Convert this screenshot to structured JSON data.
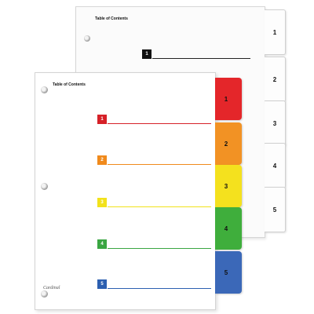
{
  "back_sheet": {
    "title": "Table of Contents",
    "entry_number": "1",
    "tabs": [
      "1",
      "2",
      "3",
      "4",
      "5"
    ]
  },
  "front_sheet": {
    "title": "Table of Contents",
    "brand": "Cardinal",
    "entries": [
      {
        "number": "1",
        "color": "#d62128"
      },
      {
        "number": "2",
        "color": "#f08a1c"
      },
      {
        "number": "3",
        "color": "#f2e21b"
      },
      {
        "number": "4",
        "color": "#3aa642"
      },
      {
        "number": "5",
        "color": "#2c5fb0"
      }
    ],
    "tabs": [
      {
        "label": "1",
        "color": "#e4262a"
      },
      {
        "label": "2",
        "color": "#f29224"
      },
      {
        "label": "3",
        "color": "#f4e11e"
      },
      {
        "label": "4",
        "color": "#3fae3c"
      },
      {
        "label": "5",
        "color": "#3b68b8"
      }
    ]
  }
}
